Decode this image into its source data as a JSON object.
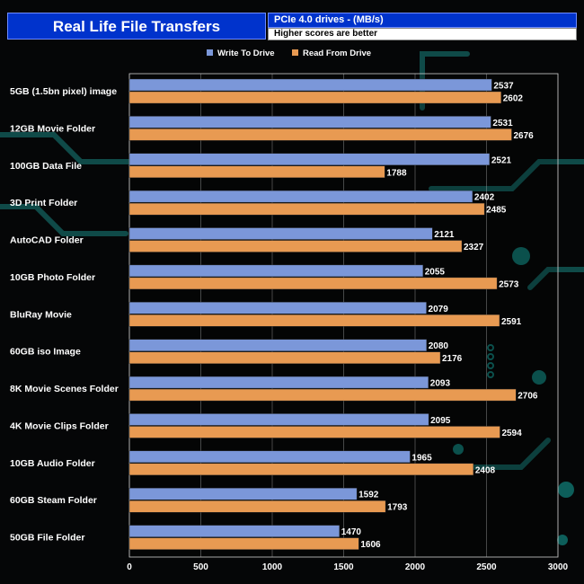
{
  "header": {
    "title": "Real Life File Transfers",
    "subtitle": "PCIe 4.0 drives - (MB/s)",
    "note": "Higher scores are better"
  },
  "colors": {
    "write": "#7b97d9",
    "read": "#e89a52",
    "header_bg": "#0033cc",
    "text": "#ffffff"
  },
  "chart_data": {
    "type": "bar",
    "orientation": "horizontal",
    "title": "Real Life File Transfers",
    "subtitle": "PCIe 4.0 drives - (MB/s)",
    "note": "Higher scores are better",
    "categories": [
      "5GB (1.5bn pixel) image",
      "12GB Movie Folder",
      "100GB Data File",
      "3D Print Folder",
      "AutoCAD Folder",
      "10GB Photo Folder",
      "BluRay Movie",
      "60GB iso Image",
      "8K Movie Scenes Folder",
      "4K Movie Clips Folder",
      "10GB Audio Folder",
      "60GB Steam Folder",
      "50GB File Folder"
    ],
    "series": [
      {
        "name": "Write To  Drive",
        "color": "#7b97d9",
        "values": [
          2537,
          2531,
          2521,
          2402,
          2121,
          2055,
          2079,
          2080,
          2093,
          2095,
          1965,
          1592,
          1470
        ]
      },
      {
        "name": "Read From  Drive",
        "color": "#e89a52",
        "values": [
          2602,
          2676,
          1788,
          2485,
          2327,
          2573,
          2591,
          2176,
          2706,
          2594,
          2408,
          1793,
          1606
        ]
      }
    ],
    "xlim": [
      0,
      3000
    ],
    "xticks": [
      0,
      500,
      1000,
      1500,
      2000,
      2500,
      3000
    ],
    "legend_position": "top-center",
    "grid": true
  }
}
